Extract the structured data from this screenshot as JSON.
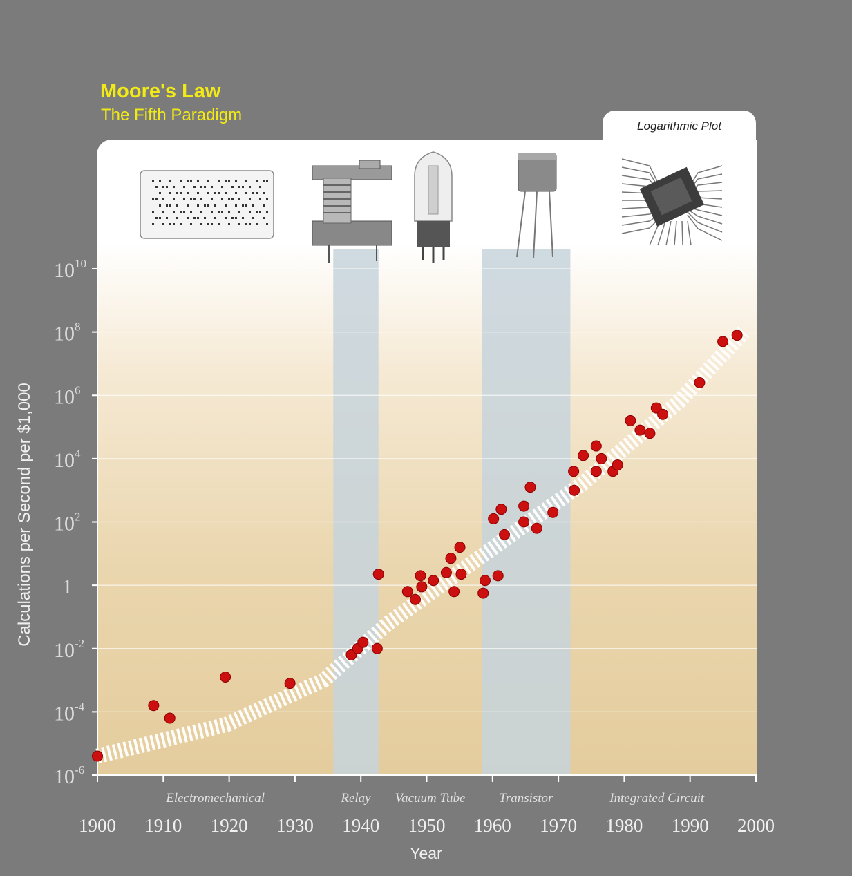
{
  "chart_data": {
    "type": "scatter",
    "title": "Moore's Law",
    "subtitle": "The Fifth Paradigm",
    "plot_label": "Logarithmic Plot",
    "xlabel": "Year",
    "ylabel": "Calculations per Second per $1,000",
    "y_scale": "log10",
    "xlim": [
      1900,
      2000
    ],
    "ylim_log10": [
      -6,
      10
    ],
    "x_ticks": [
      "1900",
      "1910",
      "1920",
      "1930",
      "1940",
      "1950",
      "1960",
      "1970",
      "1980",
      "1990",
      "2000"
    ],
    "y_ticks": [
      {
        "log": 10,
        "base": "10",
        "exp": "10"
      },
      {
        "log": 8,
        "base": "10",
        "exp": "8"
      },
      {
        "log": 6,
        "base": "10",
        "exp": "6"
      },
      {
        "log": 4,
        "base": "10",
        "exp": "4"
      },
      {
        "log": 2,
        "base": "10",
        "exp": "2"
      },
      {
        "log": 0,
        "base": "1",
        "exp": ""
      },
      {
        "log": -2,
        "base": "10",
        "exp": "-2"
      },
      {
        "log": -4,
        "base": "10",
        "exp": "-4"
      },
      {
        "log": -6,
        "base": "10",
        "exp": "-6"
      }
    ],
    "eras": [
      {
        "label": "Electromechanical",
        "start": 1900,
        "end": 1936.5,
        "shaded": false
      },
      {
        "label": "Relay",
        "start": 1936.5,
        "end": 1943.5,
        "shaded": true
      },
      {
        "label": "Vacuum Tube",
        "start": 1943.5,
        "end": 1959.5,
        "shaded": false
      },
      {
        "label": "Transistor",
        "start": 1959.5,
        "end": 1973.2,
        "shaded": true
      },
      {
        "label": "Integrated Circuit",
        "start": 1973.2,
        "end": 2000,
        "shaded": false
      }
    ],
    "trend": [
      [
        1900,
        -5.4
      ],
      [
        1920,
        -4.4
      ],
      [
        1935,
        -3.0
      ],
      [
        1945,
        -1.2
      ],
      [
        1960,
        1.0
      ],
      [
        1975,
        3.2
      ],
      [
        1990,
        5.8
      ],
      [
        2000,
        8.0
      ]
    ],
    "points": [
      [
        1900,
        -5.4
      ],
      [
        1908.7,
        -3.8
      ],
      [
        1911.2,
        -4.2
      ],
      [
        1919.8,
        -2.9
      ],
      [
        1929.8,
        -3.1
      ],
      [
        1939.3,
        -2.2
      ],
      [
        1940.3,
        -2.0
      ],
      [
        1941.1,
        -1.8
      ],
      [
        1943.3,
        -2.0
      ],
      [
        1943.5,
        0.35
      ],
      [
        1948,
        -0.2
      ],
      [
        1949.2,
        -0.45
      ],
      [
        1950,
        0.3
      ],
      [
        1950.2,
        -0.05
      ],
      [
        1952,
        0.15
      ],
      [
        1954,
        0.4
      ],
      [
        1954.7,
        0.85
      ],
      [
        1955.2,
        -0.2
      ],
      [
        1956.1,
        1.2
      ],
      [
        1956.3,
        0.35
      ],
      [
        1959.7,
        -0.25
      ],
      [
        1960,
        0.15
      ],
      [
        1961.3,
        2.1
      ],
      [
        1962,
        0.3
      ],
      [
        1962.5,
        2.4
      ],
      [
        1963,
        1.6
      ],
      [
        1966,
        2.5
      ],
      [
        1966,
        2.0
      ],
      [
        1967,
        3.1
      ],
      [
        1968,
        1.8
      ],
      [
        1970.5,
        2.3
      ],
      [
        1973.7,
        3.6
      ],
      [
        1973.8,
        3.0
      ],
      [
        1975.2,
        4.1
      ],
      [
        1977.2,
        4.4
      ],
      [
        1977.2,
        3.6
      ],
      [
        1978,
        4.0
      ],
      [
        1979.8,
        3.6
      ],
      [
        1980.5,
        3.8
      ],
      [
        1982.5,
        5.2
      ],
      [
        1984,
        4.9
      ],
      [
        1985.5,
        4.8
      ],
      [
        1986.5,
        5.6
      ],
      [
        1987.5,
        5.4
      ],
      [
        1993.2,
        6.4
      ],
      [
        1996.8,
        7.7
      ],
      [
        1999,
        7.9
      ]
    ],
    "colors": {
      "point": "#cc1010",
      "shaded_band": "#c7d4dc",
      "trend_stripe": "#ffffff",
      "title": "#f2ea16"
    }
  },
  "illustrations": [
    "punch-card",
    "relay",
    "vacuum-tube",
    "transistor",
    "integrated-circuit"
  ]
}
